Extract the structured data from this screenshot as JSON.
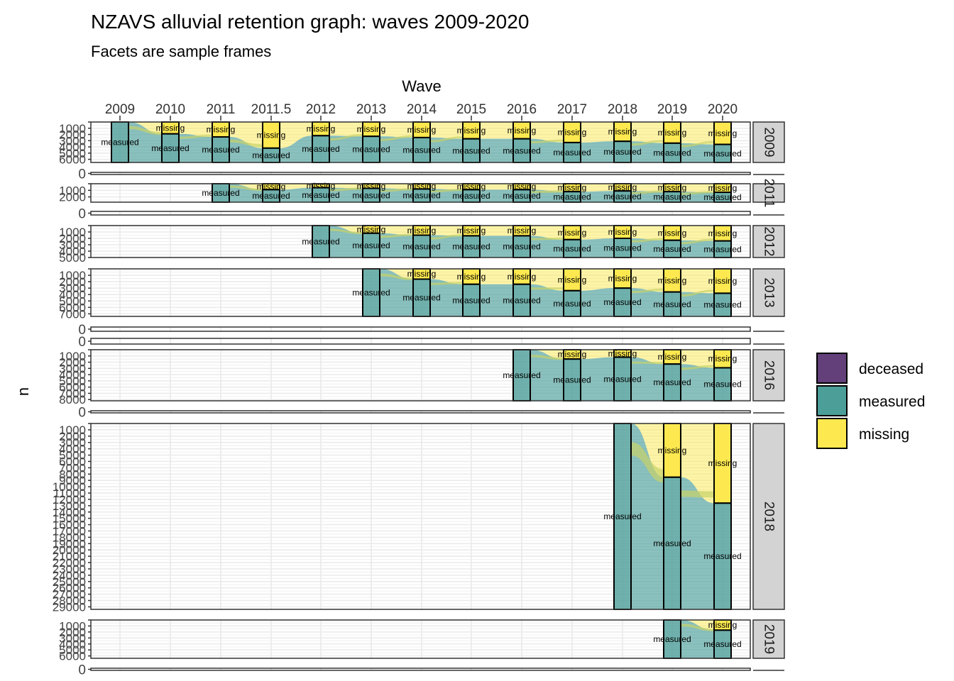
{
  "chart_data": {
    "type": "alluvial",
    "title": "NZAVS alluvial retention graph: waves 2009-2020",
    "subtitle": "Facets are sample frames",
    "x_axis_title": "Wave",
    "y_axis_title": "n",
    "waves": [
      "2009",
      "2010",
      "2011",
      "2011.5",
      "2012",
      "2013",
      "2014",
      "2015",
      "2016",
      "2017",
      "2018",
      "2019",
      "2020"
    ],
    "states": [
      "deceased",
      "measured",
      "missing"
    ],
    "colors": {
      "deceased": "#63407a",
      "measured": "#4c9e99",
      "missing": "#fde94f",
      "border": "#000000",
      "strip": "#d3d3d3",
      "grid": "#ebebeb"
    },
    "legend": {
      "position": "right",
      "entries": [
        {
          "key": "deceased",
          "label": "deceased"
        },
        {
          "key": "measured",
          "label": "measured"
        },
        {
          "key": "missing",
          "label": "missing"
        }
      ]
    },
    "facets": [
      {
        "label": "2009",
        "ymax": 6000,
        "ticks": [
          "1000",
          "2000",
          "3000",
          "4000",
          "5000",
          "6000"
        ],
        "strata": [
          {
            "wave": "2009",
            "measured": 6500,
            "missing": 0
          },
          {
            "wave": "2010",
            "measured": 4600,
            "missing": 1900
          },
          {
            "wave": "2011",
            "measured": 4100,
            "missing": 2400
          },
          {
            "wave": "2011.5",
            "measured": 2300,
            "missing": 4200
          },
          {
            "wave": "2012",
            "measured": 4300,
            "missing": 2200
          },
          {
            "wave": "2013",
            "measured": 4200,
            "missing": 2300
          },
          {
            "wave": "2014",
            "measured": 4000,
            "missing": 2500
          },
          {
            "wave": "2015",
            "measured": 3800,
            "missing": 2700
          },
          {
            "wave": "2016",
            "measured": 3800,
            "missing": 2700
          },
          {
            "wave": "2017",
            "measured": 3200,
            "missing": 3300
          },
          {
            "wave": "2018",
            "measured": 3400,
            "missing": 3100
          },
          {
            "wave": "2019",
            "measured": 3100,
            "missing": 3400
          },
          {
            "wave": "2020",
            "measured": 2900,
            "missing": 3600
          }
        ]
      },
      {
        "label": "2009",
        "ymax": 0,
        "ticks": [
          "0"
        ],
        "strata": []
      },
      {
        "label": "2011",
        "ymax": 2500,
        "ticks": [
          "1000",
          "2000"
        ],
        "strata": [
          {
            "wave": "2011",
            "measured": 2800,
            "missing": 0
          },
          {
            "wave": "2011.5",
            "measured": 1900,
            "missing": 900
          },
          {
            "wave": "2012",
            "measured": 2200,
            "missing": 600
          },
          {
            "wave": "2013",
            "measured": 2100,
            "missing": 700
          },
          {
            "wave": "2014",
            "measured": 2000,
            "missing": 800
          },
          {
            "wave": "2015",
            "measured": 1900,
            "missing": 900
          },
          {
            "wave": "2016",
            "measured": 1900,
            "missing": 900
          },
          {
            "wave": "2017",
            "measured": 1600,
            "missing": 1200
          },
          {
            "wave": "2018",
            "measured": 1700,
            "missing": 1100
          },
          {
            "wave": "2019",
            "measured": 1600,
            "missing": 1200
          },
          {
            "wave": "2020",
            "measured": 1500,
            "missing": 1300
          }
        ]
      },
      {
        "label": "2011",
        "ymax": 0,
        "ticks": [
          "0"
        ],
        "strata": []
      },
      {
        "label": "2012",
        "ymax": 5000,
        "ticks": [
          "1000",
          "2000",
          "3000",
          "4000",
          "5000"
        ],
        "strata": [
          {
            "wave": "2012",
            "measured": 5000,
            "missing": 0
          },
          {
            "wave": "2013",
            "measured": 3800,
            "missing": 1200
          },
          {
            "wave": "2014",
            "measured": 3500,
            "missing": 1500
          },
          {
            "wave": "2015",
            "measured": 3400,
            "missing": 1600
          },
          {
            "wave": "2016",
            "measured": 3400,
            "missing": 1600
          },
          {
            "wave": "2017",
            "measured": 2800,
            "missing": 2200
          },
          {
            "wave": "2018",
            "measured": 3000,
            "missing": 2000
          },
          {
            "wave": "2019",
            "measured": 2700,
            "missing": 2300
          },
          {
            "wave": "2020",
            "measured": 2600,
            "missing": 2400
          }
        ]
      },
      {
        "label": "2013",
        "ymax": 7000,
        "ticks": [
          "1000",
          "2000",
          "3000",
          "4000",
          "5000",
          "6000",
          "7000"
        ],
        "strata": [
          {
            "wave": "2013",
            "measured": 7400,
            "missing": 0
          },
          {
            "wave": "2014",
            "measured": 5800,
            "missing": 1600
          },
          {
            "wave": "2015",
            "measured": 5000,
            "missing": 2400
          },
          {
            "wave": "2016",
            "measured": 5000,
            "missing": 2400
          },
          {
            "wave": "2017",
            "measured": 4000,
            "missing": 3400
          },
          {
            "wave": "2018",
            "measured": 4400,
            "missing": 3000
          },
          {
            "wave": "2019",
            "measured": 3800,
            "missing": 3600
          },
          {
            "wave": "2020",
            "measured": 3600,
            "missing": 3800
          }
        ]
      },
      {
        "label": "2013",
        "ymax": 0,
        "ticks": [
          "0"
        ],
        "strata": []
      },
      {
        "label": "2013",
        "ymax": 0,
        "ticks": [
          "0"
        ],
        "strata": []
      },
      {
        "label": "2016",
        "ymax": 8000,
        "ticks": [
          "1000",
          "2000",
          "3000",
          "4000",
          "5000",
          "6000",
          "7000",
          "8000"
        ],
        "strata": [
          {
            "wave": "2016",
            "measured": 8200,
            "missing": 0
          },
          {
            "wave": "2017",
            "measured": 6700,
            "missing": 1500
          },
          {
            "wave": "2018",
            "measured": 7000,
            "missing": 1200
          },
          {
            "wave": "2019",
            "measured": 5900,
            "missing": 2300
          },
          {
            "wave": "2020",
            "measured": 5300,
            "missing": 2900
          }
        ]
      },
      {
        "label": "2016",
        "ymax": 0,
        "ticks": [
          "0"
        ],
        "strata": []
      },
      {
        "label": "2018",
        "ymax": 29000,
        "ticks": [
          "1000",
          "2000",
          "3000",
          "4000",
          "5000",
          "6000",
          "7000",
          "8000",
          "9000",
          "10000",
          "11000",
          "12000",
          "13000",
          "14000",
          "15000",
          "16000",
          "17000",
          "18000",
          "19000",
          "20000",
          "21000",
          "22000",
          "23000",
          "24000",
          "25000",
          "26000",
          "27000",
          "28000",
          "29000"
        ],
        "strata": [
          {
            "wave": "2018",
            "measured": 29400,
            "missing": 0
          },
          {
            "wave": "2019",
            "measured": 20900,
            "missing": 8500
          },
          {
            "wave": "2020",
            "measured": 16800,
            "missing": 12600
          }
        ]
      },
      {
        "label": "2019",
        "ymax": 6000,
        "ticks": [
          "1000",
          "2000",
          "3000",
          "4000",
          "5000",
          "6000"
        ],
        "strata": [
          {
            "wave": "2019",
            "measured": 6400,
            "missing": 0
          },
          {
            "wave": "2020",
            "measured": 4700,
            "missing": 1700
          }
        ]
      },
      {
        "label": "2019",
        "ymax": 0,
        "ticks": [
          "0"
        ],
        "strata": []
      }
    ]
  }
}
